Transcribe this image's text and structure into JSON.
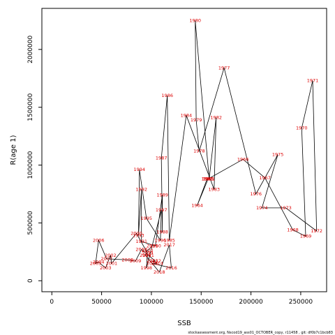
{
  "chart_data": {
    "type": "line",
    "title": "",
    "xlabel": "SSB",
    "ylabel": "R(age 1)",
    "xlim": [
      -10000,
      276000
    ],
    "ylim": [
      -95000,
      2355000
    ],
    "xticks": [
      "0",
      "50000",
      "100000",
      "150000",
      "200000",
      "250000"
    ],
    "yticks": [
      "0",
      "500000",
      "1000000",
      "1500000",
      "2000000"
    ],
    "xtick_values": [
      0,
      50000,
      100000,
      150000,
      200000,
      250000
    ],
    "ytick_values": [
      0,
      500000,
      1000000,
      1500000,
      2000000
    ],
    "grid": false,
    "legend": "none",
    "line_color": "#000000",
    "label_color": "#dd0000",
    "points": [
      {
        "year": "1963",
        "x": 156000,
        "y": 880000
      },
      {
        "year": "1964",
        "x": 146000,
        "y": 650000
      },
      {
        "year": "1965",
        "x": 157000,
        "y": 880000
      },
      {
        "year": "1966",
        "x": 192000,
        "y": 1050000
      },
      {
        "year": "1967",
        "x": 214000,
        "y": 890000
      },
      {
        "year": "1968",
        "x": 242000,
        "y": 440000
      },
      {
        "year": "1969",
        "x": 255000,
        "y": 385000
      },
      {
        "year": "1970",
        "x": 251000,
        "y": 1320000
      },
      {
        "year": "1971",
        "x": 262000,
        "y": 1730000
      },
      {
        "year": "1972",
        "x": 266000,
        "y": 430000
      },
      {
        "year": "1973",
        "x": 235000,
        "y": 630000
      },
      {
        "year": "1974",
        "x": 211000,
        "y": 630000
      },
      {
        "year": "1975",
        "x": 227000,
        "y": 1090000
      },
      {
        "year": "1976",
        "x": 205000,
        "y": 750000
      },
      {
        "year": "1977",
        "x": 173000,
        "y": 1840000
      },
      {
        "year": "1978",
        "x": 148000,
        "y": 1120000
      },
      {
        "year": "1979",
        "x": 145000,
        "y": 1390000
      },
      {
        "year": "1980",
        "x": 144000,
        "y": 2250000
      },
      {
        "year": "1981",
        "x": 158000,
        "y": 880000
      },
      {
        "year": "1982",
        "x": 165000,
        "y": 1410000
      },
      {
        "year": "1983",
        "x": 163000,
        "y": 790000
      },
      {
        "year": "1984",
        "x": 135000,
        "y": 1430000
      },
      {
        "year": "1985",
        "x": 118000,
        "y": 350000
      },
      {
        "year": "1986",
        "x": 116000,
        "y": 1600000
      },
      {
        "year": "1987",
        "x": 110000,
        "y": 1060000
      },
      {
        "year": "1988",
        "x": 111000,
        "y": 420000
      },
      {
        "year": "1989",
        "x": 111000,
        "y": 740000
      },
      {
        "year": "1990",
        "x": 104000,
        "y": 300000
      },
      {
        "year": "1991",
        "x": 90000,
        "y": 340000
      },
      {
        "year": "1992",
        "x": 90000,
        "y": 790000
      },
      {
        "year": "1993",
        "x": 87000,
        "y": 390000
      },
      {
        "year": "1994",
        "x": 88000,
        "y": 960000
      },
      {
        "year": "1995",
        "x": 95000,
        "y": 540000
      },
      {
        "year": "1996",
        "x": 109000,
        "y": 350000
      },
      {
        "year": "1997",
        "x": 110000,
        "y": 610000
      },
      {
        "year": "1998",
        "x": 95000,
        "y": 110000
      },
      {
        "year": "1999",
        "x": 96000,
        "y": 240000
      },
      {
        "year": "2000",
        "x": 85000,
        "y": 410000
      },
      {
        "year": "2001",
        "x": 60000,
        "y": 150000
      },
      {
        "year": "2002",
        "x": 59000,
        "y": 220000
      },
      {
        "year": "2003",
        "x": 54000,
        "y": 110000
      },
      {
        "year": "2004",
        "x": 47000,
        "y": 160000
      },
      {
        "year": "2005",
        "x": 44000,
        "y": 150000
      },
      {
        "year": "2006",
        "x": 47000,
        "y": 350000
      },
      {
        "year": "2007",
        "x": 55000,
        "y": 190000
      },
      {
        "year": "2008",
        "x": 76000,
        "y": 180000
      },
      {
        "year": "2009",
        "x": 84000,
        "y": 170000
      },
      {
        "year": "2010",
        "x": 90000,
        "y": 270000
      },
      {
        "year": "2011",
        "x": 97000,
        "y": 220000
      },
      {
        "year": "2012",
        "x": 104000,
        "y": 170000
      },
      {
        "year": "2013",
        "x": 101000,
        "y": 170000
      },
      {
        "year": "2014",
        "x": 106000,
        "y": 150000
      },
      {
        "year": "2015",
        "x": 101000,
        "y": 150000
      },
      {
        "year": "2016",
        "x": 120000,
        "y": 110000
      },
      {
        "year": "2017",
        "x": 118000,
        "y": 310000
      },
      {
        "year": "2018",
        "x": 108000,
        "y": 75000
      },
      {
        "year": "2019",
        "x": 94000,
        "y": 220000
      },
      {
        "year": "2020",
        "x": 96000,
        "y": 260000
      },
      {
        "year": "2021",
        "x": 101000,
        "y": 300000
      }
    ]
  },
  "footer": {
    "text": "stockassessment.org, Nscod19_ass01_OCTOBER_copy, r11458 , git: df0b7c1bcb83"
  }
}
